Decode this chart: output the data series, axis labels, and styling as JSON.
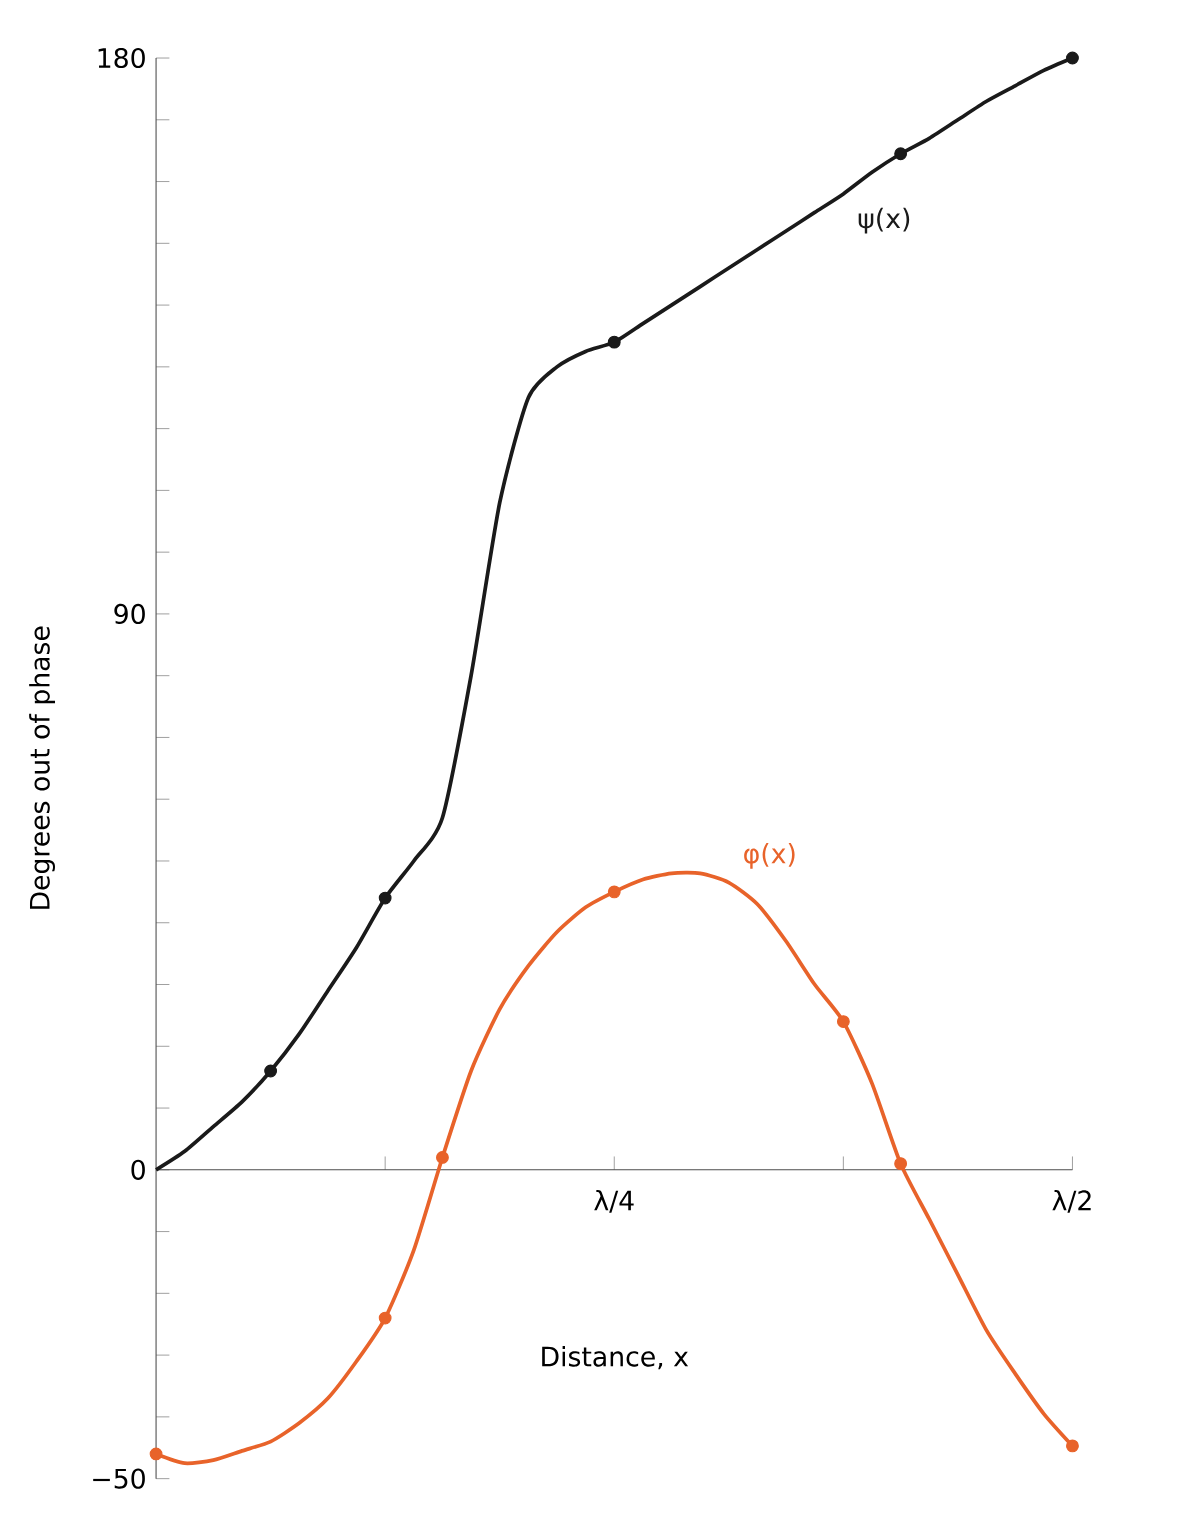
{
  "chart_data": {
    "type": "line",
    "xlabel": "Distance, x",
    "ylabel": "Degrees out of phase",
    "categories": [
      null,
      null,
      null,
      null,
      null,
      null,
      null,
      null,
      null,
      null,
      null,
      null,
      null,
      null,
      null,
      null,
      "λ/4",
      null,
      null,
      null,
      null,
      null,
      null,
      null,
      null,
      null,
      null,
      null,
      null,
      null,
      null,
      null,
      "λ/2"
    ],
    "ylim": [
      -50,
      180
    ],
    "yticks": [
      {
        "value": -50,
        "label": "−50"
      },
      {
        "value": -40,
        "label": null
      },
      {
        "value": -30,
        "label": null
      },
      {
        "value": -20,
        "label": null
      },
      {
        "value": -10,
        "label": null
      },
      0,
      {
        "value": 10,
        "label": null
      },
      {
        "value": 20,
        "label": null
      },
      {
        "value": 30,
        "label": null
      },
      {
        "value": 40,
        "label": null
      },
      {
        "value": 50,
        "label": null
      },
      {
        "value": 60,
        "label": null
      },
      {
        "value": 70,
        "label": null
      },
      {
        "value": 80,
        "label": null
      },
      90,
      {
        "value": 100,
        "label": null
      },
      {
        "value": 110,
        "label": null
      },
      {
        "value": 120,
        "label": null
      },
      {
        "value": 130,
        "label": null
      },
      {
        "value": 140,
        "label": null
      },
      {
        "value": 150,
        "label": null
      },
      {
        "value": 160,
        "label": null
      },
      {
        "value": 170,
        "label": null
      },
      180
    ],
    "grid": false,
    "legend": false,
    "series": [
      {
        "name": "ψ(x)",
        "color": "#1a1a1a",
        "values": [
          0,
          3,
          7,
          11,
          16,
          22,
          29,
          36,
          44,
          50,
          57,
          80,
          108,
          125,
          130,
          132.5,
          134,
          137,
          140,
          143,
          146,
          149,
          152,
          155,
          158,
          161.5,
          164.5,
          167,
          170,
          173,
          175.5,
          178,
          180
        ]
      },
      {
        "type": "scatter",
        "marker": "circle",
        "color": "#1a1a1a",
        "values": [
          null,
          null,
          null,
          null,
          16,
          null,
          null,
          null,
          44,
          null,
          null,
          null,
          null,
          null,
          null,
          null,
          134,
          null,
          null,
          null,
          null,
          null,
          null,
          null,
          null,
          null,
          164.5,
          null,
          null,
          null,
          null,
          null,
          180
        ]
      },
      {
        "name": "φ(x)",
        "color": "#e8632a",
        "values": [
          -46,
          -47.5,
          -47,
          -45.5,
          -44,
          -41,
          -37,
          -31,
          -24,
          -13,
          2,
          16,
          26,
          33,
          38.5,
          42.5,
          45,
          47,
          48,
          48,
          46.5,
          43,
          37,
          30,
          24,
          14,
          1,
          -8,
          -17,
          -26,
          -33,
          -39.5,
          -44.7
        ]
      },
      {
        "type": "scatter",
        "marker": "circle",
        "color": "#e8632a",
        "values": [
          -46,
          null,
          null,
          null,
          null,
          null,
          null,
          null,
          -24,
          null,
          2,
          null,
          null,
          null,
          null,
          null,
          45,
          null,
          null,
          null,
          null,
          null,
          null,
          null,
          24,
          null,
          1,
          null,
          null,
          null,
          null,
          null,
          -44.7
        ]
      }
    ]
  }
}
